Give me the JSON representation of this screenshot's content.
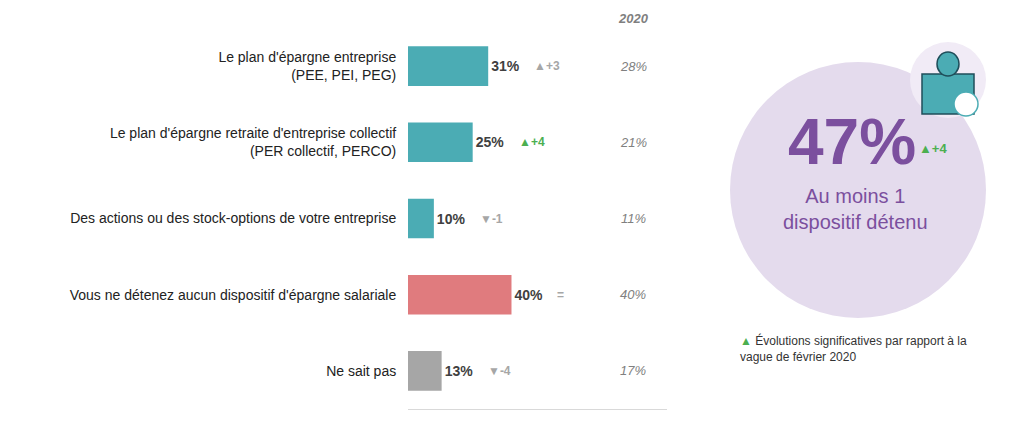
{
  "chart_data": {
    "type": "bar",
    "orientation": "horizontal",
    "categories": [
      "Le plan d'épargne entreprise (PEE, PEI, PEG)",
      "Le plan d'épargne retraite d'entreprise collectif (PER collectif, PERCO)",
      "Des actions ou des stock-options de votre entreprise",
      "Vous ne détenez aucun dispositif d'épargne salariale",
      "Ne sait pas"
    ],
    "values": [
      31,
      25,
      10,
      40,
      13
    ],
    "value_labels": [
      "31%",
      "25%",
      "10%",
      "40%",
      "13%"
    ],
    "colors": [
      "#4bacb4",
      "#4bacb4",
      "#4bacb4",
      "#e07b7e",
      "#a6a6a6"
    ],
    "data_labels": true,
    "tick_labels": "y",
    "grid": false,
    "xlim": [
      0,
      100
    ],
    "changes": {
      "labels": [
        "▲+3",
        "▲+4",
        "▼-1",
        "=",
        "▼-4"
      ],
      "colors": [
        "#a6a6a6",
        "#4caf50",
        "#a6a6a6",
        "#a6a6a6",
        "#a6a6a6"
      ]
    },
    "comparison": {
      "name": "2020",
      "values": [
        28,
        21,
        11,
        40,
        17
      ],
      "value_labels": [
        "28%",
        "21%",
        "11%",
        "40%",
        "17%"
      ]
    },
    "highlight": {
      "value": 47,
      "label": "47%",
      "change": "▲+4",
      "change_color": "#4caf50",
      "text": "Au moins 1 dispositif détenu",
      "color": "#7b4f9e"
    },
    "note": {
      "symbol": "▲",
      "symbol_color": "#4caf50",
      "lines": [
        "Évolutions significatives par rapport à la",
        "vague de février 2020"
      ]
    }
  }
}
